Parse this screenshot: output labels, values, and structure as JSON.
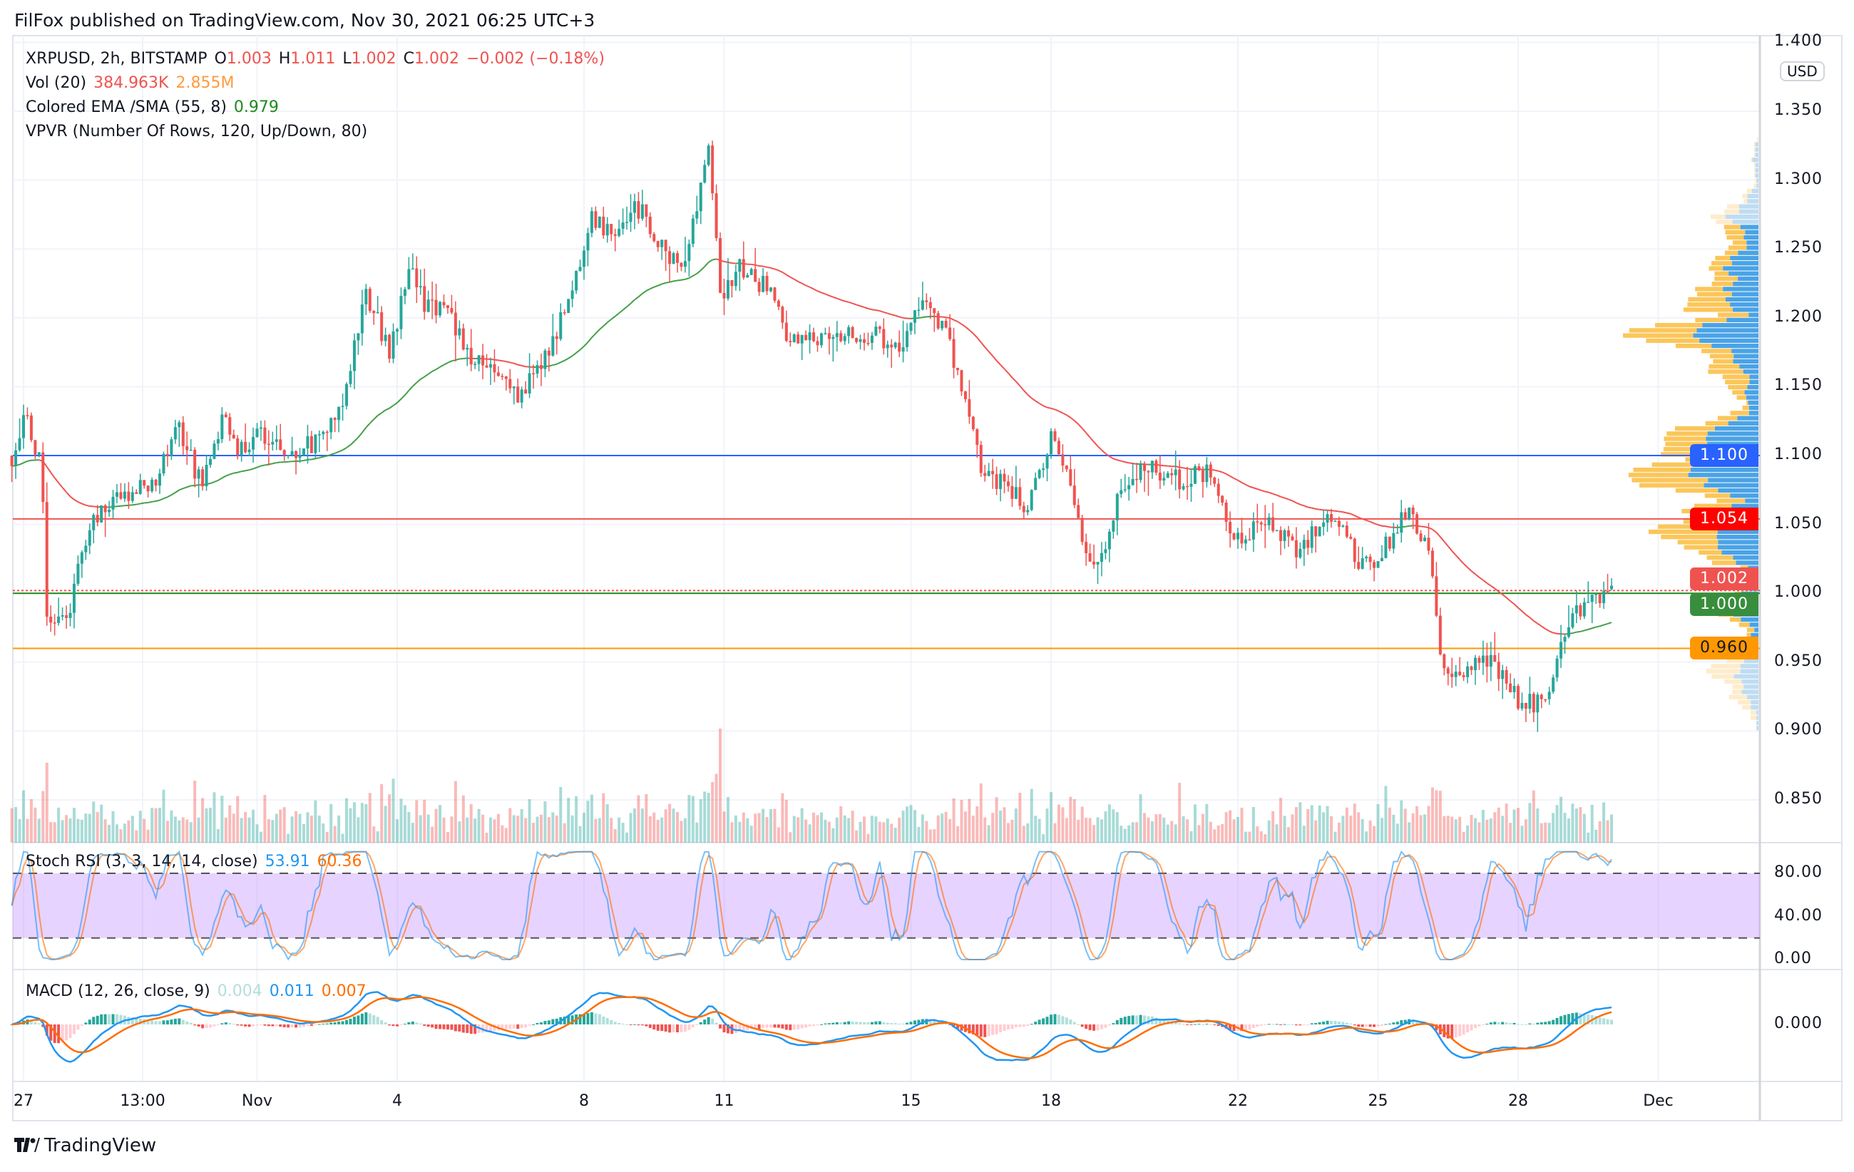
{
  "header": {
    "title": "FilFox published on TradingView.com, Nov 30, 2021 06:25 UTC+3"
  },
  "legend": {
    "symbol": "XRPUSD, 2h, BITSTAMP",
    "o_label": "O",
    "o": "1.003",
    "h_label": "H",
    "h": "1.011",
    "l_label": "L",
    "l": "1.002",
    "c_label": "C",
    "c": "1.002",
    "change": "−0.002 (−0.18%)",
    "vol_label": "Vol (20)",
    "vol": "384.963K",
    "vol_ma": "2.855M",
    "ema_label": "Colored EMA /SMA (55, 8)",
    "ema": "0.979",
    "vpvr_label": "VPVR (Number Of Rows, 120, Up/Down, 80)",
    "stoch_label": "Stoch RSI (3, 3, 14, 14, close)",
    "stoch_k": "53.91",
    "stoch_d": "60.36",
    "macd_label": "MACD (12, 26, close, 9)",
    "macd_hist": "0.004",
    "macd": "0.011",
    "macd_signal": "0.007"
  },
  "price_axis": {
    "currency": "USD",
    "ticks": [
      "1.400",
      "1.350",
      "1.300",
      "1.250",
      "1.200",
      "1.150",
      "1.100",
      "1.050",
      "1.000",
      "0.950",
      "0.900",
      "0.850"
    ]
  },
  "tags": [
    {
      "value": "1.100",
      "color": "#2962ff",
      "text_color": "#ffffff"
    },
    {
      "value": "1.054",
      "color": "#ff0000",
      "text_color": "#ffffff"
    },
    {
      "value": "1.002",
      "color": "#ef5350",
      "text_color": "#ffffff"
    },
    {
      "value": "1.000",
      "color": "#388e3c",
      "text_color": "#ffffff"
    },
    {
      "value": "0.960",
      "color": "#ff9800",
      "text_color": "#131722"
    }
  ],
  "stoch_axis": [
    "80.00",
    "40.00",
    "0.00"
  ],
  "macd_axis": [
    "0.000"
  ],
  "time_axis": [
    {
      "label": "27",
      "day": 0
    },
    {
      "label": "13:00",
      "day": 2.55
    },
    {
      "label": "Nov",
      "day": 5
    },
    {
      "label": "4",
      "day": 8
    },
    {
      "label": "8",
      "day": 12
    },
    {
      "label": "11",
      "day": 15
    },
    {
      "label": "15",
      "day": 19
    },
    {
      "label": "18",
      "day": 22
    },
    {
      "label": "22",
      "day": 26
    },
    {
      "label": "25",
      "day": 29
    },
    {
      "label": "28",
      "day": 32
    },
    {
      "label": "Dec",
      "day": 35
    }
  ],
  "footer": {
    "brand": "TradingView"
  },
  "chart_data": {
    "type": "candlestick",
    "title": "XRPUSD, 2h, BITSTAMP",
    "x_unit": "days since Oct 27 2021",
    "ylim": [
      0.82,
      1.4
    ],
    "approx_close_path": [
      [
        -0.25,
        1.1
      ],
      [
        0,
        1.13
      ],
      [
        0.38,
        1.09
      ],
      [
        0.51,
        0.98
      ],
      [
        1.01,
        0.99
      ],
      [
        1.39,
        1.05
      ],
      [
        2.03,
        1.07
      ],
      [
        2.78,
        1.08
      ],
      [
        3.29,
        1.12
      ],
      [
        3.8,
        1.08
      ],
      [
        4.3,
        1.13
      ],
      [
        4.56,
        1.1
      ],
      [
        5.06,
        1.12
      ],
      [
        5.57,
        1.1
      ],
      [
        6.33,
        1.11
      ],
      [
        6.84,
        1.14
      ],
      [
        7.34,
        1.22
      ],
      [
        7.85,
        1.17
      ],
      [
        8.23,
        1.24
      ],
      [
        8.61,
        1.21
      ],
      [
        9.11,
        1.2
      ],
      [
        9.62,
        1.17
      ],
      [
        10.13,
        1.16
      ],
      [
        10.63,
        1.14
      ],
      [
        11.14,
        1.17
      ],
      [
        11.65,
        1.21
      ],
      [
        12.15,
        1.27
      ],
      [
        12.66,
        1.26
      ],
      [
        13.16,
        1.28
      ],
      [
        13.67,
        1.25
      ],
      [
        14.18,
        1.24
      ],
      [
        14.68,
        1.32
      ],
      [
        14.94,
        1.21
      ],
      [
        15.32,
        1.24
      ],
      [
        15.95,
        1.22
      ],
      [
        16.46,
        1.18
      ],
      [
        17.22,
        1.19
      ],
      [
        17.97,
        1.19
      ],
      [
        18.73,
        1.18
      ],
      [
        19.24,
        1.21
      ],
      [
        19.75,
        1.19
      ],
      [
        20.13,
        1.14
      ],
      [
        20.51,
        1.09
      ],
      [
        21.01,
        1.08
      ],
      [
        21.52,
        1.06
      ],
      [
        22.03,
        1.12
      ],
      [
        22.28,
        1.09
      ],
      [
        22.66,
        1.04
      ],
      [
        23.04,
        1.02
      ],
      [
        23.54,
        1.08
      ],
      [
        24.05,
        1.09
      ],
      [
        24.81,
        1.08
      ],
      [
        25.32,
        1.09
      ],
      [
        25.95,
        1.04
      ],
      [
        26.58,
        1.05
      ],
      [
        27.34,
        1.03
      ],
      [
        27.97,
        1.06
      ],
      [
        28.61,
        1.02
      ],
      [
        29.11,
        1.03
      ],
      [
        29.62,
        1.06
      ],
      [
        30.13,
        1.03
      ],
      [
        30.38,
        0.94
      ],
      [
        31.39,
        0.95
      ],
      [
        32.03,
        0.92
      ],
      [
        32.66,
        0.92
      ],
      [
        32.91,
        0.97
      ],
      [
        33.42,
        0.99
      ],
      [
        34.05,
        1.002
      ]
    ],
    "horizontal_lines": [
      1.1,
      1.054,
      1.002,
      1.0,
      0.96
    ],
    "last": {
      "open": 1.003,
      "high": 1.011,
      "low": 1.002,
      "close": 1.002
    },
    "colors": {
      "up": "#26a69a",
      "down": "#ef5350",
      "ema_up": "#43a047",
      "ema_down": "#ef5350",
      "stoch_k": "#2196f3",
      "stoch_d": "#ff6d00",
      "vpvr_up": "#4aa3e6",
      "vpvr_down": "#fbc65a"
    }
  }
}
